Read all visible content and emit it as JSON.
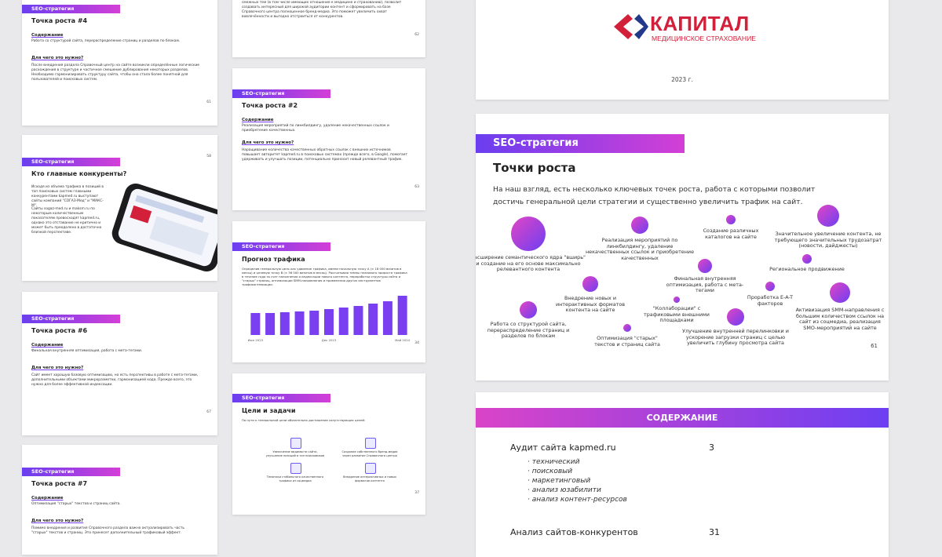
{
  "slide_growth4": {
    "badge": "SEO-стратегия",
    "title": "Точка роста #4",
    "h1": "Содержание",
    "p1": "Работа со структурой сайта, перераспределение страниц и разделов по блокам.",
    "h2": "Для чего это нужно?",
    "p2": "После внедрения раздела Справочный центр на сайте возникли определённые логические расхождения в структуре и частичное смешение дублирования некоторых разделов. Необходимо гармонизировать структуру сайта, чтобы она стала более понятной для пользователей и поисковых систем.",
    "page": "61"
  },
  "slide_competitors": {
    "badge": "SEO-стратегия",
    "title": "Кто главные конкуренты?",
    "p1": "Исходя из объема трафика в позиций в топ поисковых систем главными конкурентами kapmed.ru выступают сайты компаний \"СОГАЗ-Мед\" и \"МАКС-М\".",
    "p2": "Сайты sogaz-med.ru и maksm.ru по некоторым количественным показателям превосходят kapmed.ru, однако это отставание не критично и может быть преодолено в достаточно близкой перспективе.",
    "page": "58"
  },
  "slide_growth6": {
    "badge": "SEO-стратегия",
    "title": "Точка роста #6",
    "h1": "Содержание",
    "p1": "Финальная внутренняя оптимизация, работа с мета-тегами.",
    "h2": "Для чего это нужно?",
    "p2": "Сайт имеет хорошую базовую оптимизацию, но есть перспективы в работе с мета-тегами, дополнительными объектами микроразметки, гармонизацией кода. Прежде всего, это нужно для более эффективной индексации.",
    "page": "67"
  },
  "slide_growth7": {
    "badge": "SEO-стратегия",
    "title": "Точка роста #7",
    "h1": "Содержание",
    "p1": "Оптимизация \"старых\" текстов и страниц сайта.",
    "h2": "Для чего это нужно?",
    "p2": "Помимо внедрения и развития Справочного раздела важно актуализировать часть \"старых\" текстов и страниц. Это принесет дополнительный трафиковый эффект."
  },
  "slide_growth1_tail": {
    "p2": "непосредственное отношение к тематике ОМС. Расширение ядра, включение в него смежных тем (в том числе имеющих отношение к медицине и страхованию), позволит создавать интересный для широкой аудитории контент и сформировать на базе Справочного центра полноценное бренд-медиа. Это поможет увеличить охват вовлечённости и выгодно отстроиться от конкурентов.",
    "page": "62"
  },
  "slide_growth2": {
    "badge": "SEO-стратегия",
    "title": "Точка роста #2",
    "h1": "Содержание",
    "p1": "Реализация мероприятий по линкбилдингу, удаление некачественных ссылок и приобретение качественных.",
    "h2": "Для чего это нужно?",
    "p2": "Наращивание количества качественных обратных ссылок с внешних источников повышает авторитет kapmed.ru в поисковых системах (прежде всего, в Google), помогает удерживать и улучшать позиции, потенциально приносит новый релевантный трафик.",
    "page": "63"
  },
  "slide_forecast": {
    "badge": "SEO-стратегия",
    "title": "Прогноз трафика",
    "p1": "Определив генеральную цель как удвоение трафика, имеем начальную точку А (≈ 18 000 визитов в месяц) и целевую точку В (≈ 36 000 визитов в месяц). Рассчитывая темпы планового прироста трафика в течение года за счет наполнения и индексации нового контента, переработки структуры сайта и \"старых\" страниц, оптимизации SMM-направления и применения других инструментов трафикогенерации.",
    "values": [
      28,
      28,
      29,
      30,
      31,
      33,
      35,
      37,
      40,
      43,
      50
    ],
    "axis_labels": [
      "Июн 2023",
      "Дек 2023",
      "Май 2024"
    ],
    "page": "34"
  },
  "slide_goals": {
    "badge": "SEO-стратегия",
    "title": "Цели и задачи",
    "p1": "По пути к генеральной цели обязательно достижение сопутствующих целей:",
    "goals": [
      "Увеличение видимости сайта, улучшение позиций в топ поисковиков",
      "Создание собственного бренд-медиа через развитие Справочного центра",
      "Тематики стабильного качественного трафика из соцмедиа",
      "Внедрение интерактивных и новых форматов контента"
    ],
    "page": "37"
  },
  "slide_cover": {
    "logo": "КАПИТАЛ",
    "logo_sub": "МЕДИЦИНСКОЕ СТРАХОВАНИЕ",
    "year": "2023 г."
  },
  "slide_points": {
    "badge": "SEO-стратегия",
    "title": "Точки роста",
    "intro": "На наш взгляд, есть несколько ключевых точек роста, работа с которыми позволит достичь генеральной цели стратегии и существенно увеличить трафик на сайт.",
    "points": [
      "Расширение семантического ядра \"вширь\" и создание на его основе максимально релевантного контента",
      "Реализация мероприятий по линкбилдингу, удаление некачественных ссылок и приобретение качественных",
      "Создание различных каталогов на сайте",
      "Значительное увеличение контента, не требующего значительных трудозатрат (новости, дайджесты)",
      "Внедрение новых и интерактивных форматов контента на сайте",
      "Финальная внутренняя оптимизация, работа с мета-тегами",
      "Региональное продвижение",
      "Работа со структурой сайта, перераспределение страниц и разделов по блокам",
      "\"Коллаборации\" с трафиковыми внешними площадками",
      "Проработка E-A-T факторов",
      "Активизация SMM-направления с большим количеством ссылок на сайт из соцмедиа, реализация SMO-мероприятий на сайте",
      "Оптимизация \"старых\" текстов и страниц сайта",
      "Улучшение внутренней перелинковки и ускорение загрузки страниц с целью увеличить глубину просмотра сайта"
    ],
    "page": "61"
  },
  "slide_contents": {
    "header": "СОДЕРЖАНИЕ",
    "items": [
      {
        "title": "Аудит сайта kapmed.ru",
        "page": "3",
        "sub": [
          "· технический",
          "· поисковый",
          "· маркетинговый",
          "· анализ юзабилити",
          "· анализ контент-ресурсов"
        ]
      },
      {
        "title": "Анализ сайтов-конкурентов",
        "page": "31"
      }
    ]
  }
}
